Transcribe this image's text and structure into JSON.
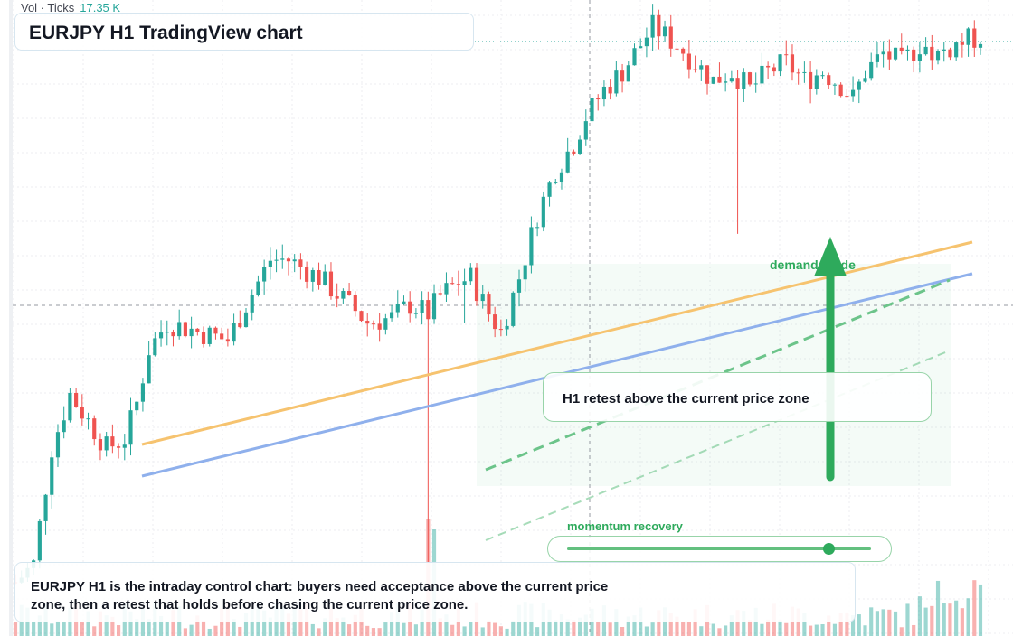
{
  "volume_legend": {
    "label": "Vol · Ticks",
    "value": "17.35 K"
  },
  "title": "EURJPY H1 TradingView chart",
  "annotations": {
    "demand_label": "demand guide",
    "retest_label": "H1 retest above the current price zone",
    "momentum_label": "momentum recovery",
    "momentum_level": 0.86,
    "note": "EURJPY H1 is the intraday control chart: buyers need acceptance above the current price zone, then a retest that holds before chasing the current price zone."
  },
  "colors": {
    "up": "#26a69a",
    "down": "#ef5350",
    "accent_green": "#2eaa5c",
    "orange_trendline": "#f6c36f",
    "blue_trendline": "#8fb0ec"
  },
  "chart_data": {
    "type": "candlestick",
    "symbol": "EURJPY",
    "timeframe": "H1",
    "candle_count": 160,
    "path_anchors": [
      [
        0,
        172.2
      ],
      [
        3,
        172.4
      ],
      [
        6,
        173.7
      ],
      [
        9,
        174.3
      ],
      [
        12,
        174.0
      ],
      [
        15,
        173.7
      ],
      [
        18,
        173.8
      ],
      [
        20,
        174.2
      ],
      [
        22,
        174.8
      ],
      [
        25,
        175.1
      ],
      [
        30,
        175.0
      ],
      [
        35,
        174.9
      ],
      [
        38,
        175.3
      ],
      [
        42,
        175.8
      ],
      [
        45,
        175.8
      ],
      [
        50,
        175.6
      ],
      [
        55,
        175.3
      ],
      [
        58,
        175.1
      ],
      [
        62,
        175.15
      ],
      [
        65,
        175.3
      ],
      [
        68,
        175.2
      ],
      [
        70,
        175.4
      ],
      [
        73,
        175.55
      ],
      [
        75,
        175.6
      ],
      [
        78,
        175.2
      ],
      [
        80,
        175.0
      ],
      [
        83,
        175.6
      ],
      [
        86,
        176.3
      ],
      [
        89,
        176.8
      ],
      [
        92,
        177.1
      ],
      [
        94,
        177.4
      ],
      [
        97,
        177.7
      ],
      [
        100,
        177.9
      ],
      [
        103,
        178.2
      ],
      [
        105,
        178.4
      ],
      [
        107,
        178.3
      ],
      [
        109,
        178.2
      ],
      [
        112,
        178.0
      ],
      [
        115,
        177.8
      ],
      [
        118,
        177.9
      ],
      [
        121,
        177.7
      ],
      [
        124,
        177.9
      ],
      [
        127,
        178.0
      ],
      [
        130,
        177.8
      ],
      [
        133,
        177.9
      ],
      [
        136,
        177.75
      ],
      [
        138,
        177.6
      ],
      [
        140,
        177.9
      ],
      [
        143,
        178.1
      ],
      [
        146,
        178.0
      ],
      [
        149,
        178.2
      ],
      [
        152,
        178.1
      ],
      [
        155,
        178.2
      ],
      [
        159,
        178.3
      ]
    ],
    "volume_series": "tick volume histogram along the bottom, colored by candle direction"
  }
}
